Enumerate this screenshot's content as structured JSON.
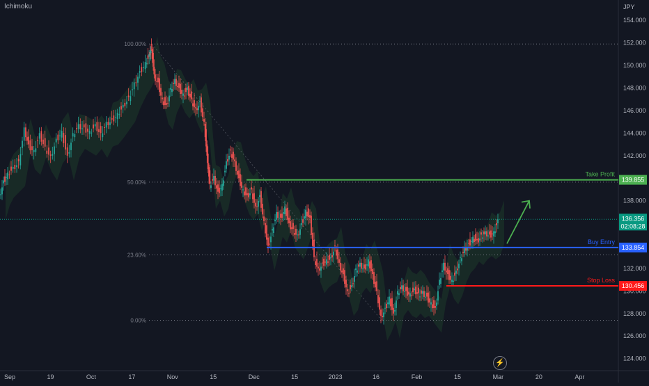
{
  "indicator": "Ichimoku",
  "currency": "JPY",
  "colors": {
    "background": "#131722",
    "up": "#26a69a",
    "down": "#ef5350",
    "grid_dot": "#787b86",
    "take_profit": "#4caf50",
    "buy_entry": "#2962ff",
    "stop_loss": "#ff1a1a",
    "current_price": "#089981",
    "arrow": "#4caf50",
    "cloud_green": "#1e3a2a",
    "cloud_red": "#3a1e24"
  },
  "icons": {
    "replay": "lightning-icon"
  },
  "chart_data": {
    "type": "candlestick",
    "title": "",
    "x_ticks": [
      "Sep",
      "19",
      "Oct",
      "17",
      "Nov",
      "15",
      "Dec",
      "15",
      "2023",
      "16",
      "Feb",
      "15",
      "Mar",
      "20",
      "Apr"
    ],
    "y_ticks": [
      "124.000",
      "126.000",
      "128.000",
      "130.000",
      "132.000",
      "134.000",
      "136.000",
      "138.000",
      "140.000",
      "142.000",
      "144.000",
      "146.000",
      "148.000",
      "150.000",
      "152.000",
      "154.000"
    ],
    "ylim": [
      122.5,
      155.8
    ],
    "current_price": "136.356",
    "countdown": "02:08:28",
    "fibonacci": [
      {
        "label": "100.00%",
        "price": 151.9
      },
      {
        "label": "50.00%",
        "price": 139.65
      },
      {
        "label": "23.60%",
        "price": 133.2
      },
      {
        "label": "0.00%",
        "price": 127.4
      }
    ],
    "levels": [
      {
        "name": "Take Profit",
        "price": 139.855,
        "price_label": "139.855",
        "role": "take_profit"
      },
      {
        "name": "Buy Entry",
        "price": 133.854,
        "price_label": "133.854",
        "role": "buy_entry"
      },
      {
        "name": "Stop Loss",
        "price": 130.456,
        "price_label": "130.456",
        "role": "stop_loss"
      }
    ],
    "price_path": [
      [
        0,
        138.5
      ],
      [
        6,
        139.8
      ],
      [
        12,
        140.5
      ],
      [
        20,
        141.0
      ],
      [
        28,
        141.5
      ],
      [
        36,
        144.5
      ],
      [
        42,
        143.0
      ],
      [
        50,
        142.5
      ],
      [
        58,
        144.0
      ],
      [
        66,
        142.8
      ],
      [
        74,
        142.0
      ],
      [
        82,
        143.5
      ],
      [
        90,
        144.2
      ],
      [
        98,
        142.0
      ],
      [
        106,
        144.0
      ],
      [
        114,
        144.8
      ],
      [
        122,
        144.5
      ],
      [
        130,
        144.2
      ],
      [
        138,
        144.8
      ],
      [
        146,
        144.0
      ],
      [
        154,
        145.0
      ],
      [
        162,
        145.2
      ],
      [
        170,
        145.8
      ],
      [
        178,
        146.5
      ],
      [
        186,
        147.2
      ],
      [
        194,
        148.5
      ],
      [
        202,
        149.5
      ],
      [
        210,
        150.3
      ],
      [
        215,
        151.0
      ],
      [
        218,
        151.8
      ],
      [
        222,
        149.2
      ],
      [
        228,
        148.5
      ],
      [
        234,
        147.0
      ],
      [
        240,
        146.5
      ],
      [
        246,
        148.0
      ],
      [
        252,
        148.8
      ],
      [
        258,
        148.0
      ],
      [
        264,
        147.5
      ],
      [
        270,
        148.0
      ],
      [
        276,
        147.0
      ],
      [
        282,
        146.2
      ],
      [
        288,
        146.8
      ],
      [
        294,
        145.0
      ],
      [
        298,
        142.0
      ],
      [
        302,
        139.5
      ],
      [
        308,
        140.2
      ],
      [
        314,
        138.8
      ],
      [
        320,
        139.5
      ],
      [
        326,
        141.5
      ],
      [
        332,
        142.5
      ],
      [
        338,
        141.5
      ],
      [
        344,
        140.0
      ],
      [
        350,
        139.0
      ],
      [
        356,
        138.5
      ],
      [
        362,
        139.0
      ],
      [
        368,
        137.5
      ],
      [
        374,
        138.5
      ],
      [
        380,
        136.2
      ],
      [
        386,
        134.0
      ],
      [
        392,
        135.5
      ],
      [
        398,
        137.0
      ],
      [
        404,
        136.5
      ],
      [
        410,
        137.5
      ],
      [
        416,
        136.0
      ],
      [
        422,
        135.5
      ],
      [
        428,
        135.0
      ],
      [
        434,
        136.0
      ],
      [
        440,
        137.2
      ],
      [
        446,
        136.5
      ],
      [
        452,
        133.0
      ],
      [
        458,
        132.0
      ],
      [
        464,
        132.5
      ],
      [
        470,
        132.8
      ],
      [
        476,
        133.0
      ],
      [
        482,
        134.0
      ],
      [
        488,
        132.5
      ],
      [
        494,
        131.5
      ],
      [
        500,
        130.0
      ],
      [
        506,
        130.5
      ],
      [
        512,
        132.0
      ],
      [
        518,
        132.5
      ],
      [
        524,
        132.0
      ],
      [
        530,
        132.8
      ],
      [
        536,
        131.5
      ],
      [
        542,
        130.0
      ],
      [
        548,
        127.8
      ],
      [
        554,
        128.5
      ],
      [
        560,
        129.5
      ],
      [
        566,
        128.0
      ],
      [
        572,
        130.0
      ],
      [
        578,
        130.5
      ],
      [
        584,
        130.0
      ],
      [
        590,
        129.8
      ],
      [
        596,
        130.2
      ],
      [
        602,
        129.8
      ],
      [
        608,
        130.0
      ],
      [
        614,
        129.5
      ],
      [
        620,
        129.0
      ],
      [
        626,
        128.5
      ],
      [
        632,
        131.0
      ],
      [
        638,
        132.5
      ],
      [
        644,
        131.5
      ],
      [
        650,
        131.0
      ],
      [
        656,
        131.8
      ],
      [
        662,
        133.0
      ],
      [
        668,
        133.8
      ],
      [
        674,
        134.2
      ],
      [
        680,
        134.8
      ],
      [
        686,
        134.5
      ],
      [
        692,
        135.0
      ],
      [
        698,
        135.3
      ],
      [
        704,
        135.0
      ],
      [
        710,
        135.3
      ],
      [
        716,
        136.356
      ]
    ],
    "annotation_arrow": {
      "from": [
        728,
        134.2
      ],
      "to": [
        760,
        138.0
      ]
    }
  }
}
